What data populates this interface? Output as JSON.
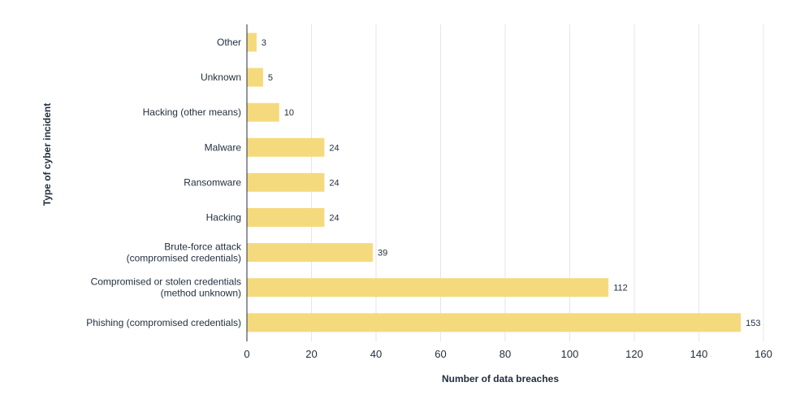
{
  "chart_data": {
    "type": "bar",
    "orientation": "horizontal",
    "categories": [
      [
        "Other"
      ],
      [
        "Unknown"
      ],
      [
        "Hacking (other means)"
      ],
      [
        "Malware"
      ],
      [
        "Ransomware"
      ],
      [
        "Hacking"
      ],
      [
        "Brute-force attack",
        "(compromised credentials)"
      ],
      [
        "Compromised or stolen credentials",
        "(method unknown)"
      ],
      [
        "Phishing (compromised credentials)"
      ]
    ],
    "values": [
      3,
      5,
      10,
      24,
      24,
      24,
      39,
      112,
      153
    ],
    "xlabel": "Number of data breaches",
    "ylabel": "Type of cyber incident",
    "xlim": [
      0,
      160
    ],
    "xticks": [
      0,
      20,
      40,
      60,
      80,
      100,
      120,
      140,
      160
    ],
    "grid": true,
    "bar_color": "#f5da7d",
    "grid_color": "#e6e6e6",
    "text_color": "#1f2d3d"
  }
}
